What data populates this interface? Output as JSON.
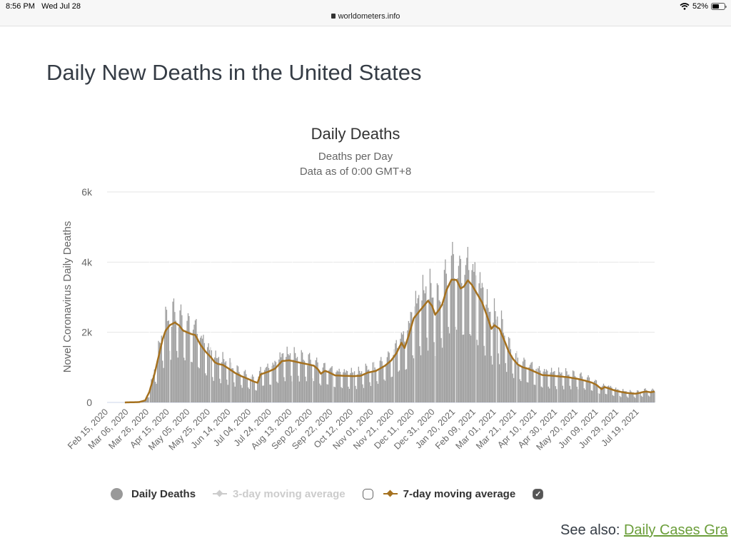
{
  "statusbar": {
    "time": "8:56 PM",
    "date": "Wed Jul 28",
    "url": "worldometers.info",
    "battery": "52%"
  },
  "page": {
    "title": "Daily New Deaths in the United States"
  },
  "see_also": {
    "label": "See also:",
    "link": "Daily Cases Gra"
  },
  "colors": {
    "bars": "#9e9e9e",
    "ma7": "#a5711f",
    "ma3_disabled": "#cccccc",
    "link": "#6b9e3a"
  },
  "chart_data": {
    "type": "bar",
    "title": "Daily Deaths",
    "subtitle": "Deaths per Day",
    "subtitle2": "Data as of 0:00 GMT+8",
    "xlabel": "",
    "ylabel": "Novel Coronavirus Daily Deaths",
    "ylim": [
      0,
      6000
    ],
    "yticks": [
      0,
      2000,
      4000,
      6000
    ],
    "ytick_labels": [
      "0",
      "2k",
      "4k",
      "6k"
    ],
    "grid": true,
    "x_start_date": "Feb 15, 2020",
    "x_days": 536,
    "x_tick_every_days": 20,
    "x_tick_labels": [
      "Feb 15, 2020",
      "Mar 06, 2020",
      "Mar 26, 2020",
      "Apr 15, 2020",
      "May 05, 2020",
      "May 25, 2020",
      "Jun 14, 2020",
      "Jul 04, 2020",
      "Jul 24, 2020",
      "Aug 13, 2020",
      "Sep 02, 2020",
      "Sep 22, 2020",
      "Oct 12, 2020",
      "Nov 01, 2020",
      "Nov 21, 2020",
      "Dec 11, 2020",
      "Dec 31, 2020",
      "Jan 20, 2021",
      "Feb 09, 2021",
      "Mar 01, 2021",
      "Mar 21, 2021",
      "Apr 10, 2021",
      "Apr 30, 2021",
      "May 20, 2021",
      "Jun 09, 2021",
      "Jun 29, 2021",
      "Jul 19, 2021"
    ],
    "weekly_pattern": [
      0.62,
      0.55,
      1.05,
      1.25,
      1.22,
      1.18,
      1.1
    ],
    "series": [
      {
        "name": "Daily Deaths",
        "kind": "bar",
        "derived_from": "7-day moving average x weekly_pattern",
        "visible": true
      },
      {
        "name": "3-day moving average",
        "kind": "line",
        "visible": false
      },
      {
        "name": "7-day moving average",
        "kind": "line",
        "visible": true,
        "points": [
          [
            16,
            0
          ],
          [
            30,
            10
          ],
          [
            36,
            60
          ],
          [
            40,
            300
          ],
          [
            45,
            800
          ],
          [
            49,
            1300
          ],
          [
            53,
            1800
          ],
          [
            56,
            2050
          ],
          [
            60,
            2200
          ],
          [
            65,
            2280
          ],
          [
            69,
            2200
          ],
          [
            73,
            2050
          ],
          [
            77,
            2000
          ],
          [
            81,
            1950
          ],
          [
            85,
            1920
          ],
          [
            90,
            1650
          ],
          [
            95,
            1450
          ],
          [
            100,
            1300
          ],
          [
            104,
            1150
          ],
          [
            107,
            1100
          ],
          [
            112,
            1070
          ],
          [
            118,
            960
          ],
          [
            124,
            840
          ],
          [
            130,
            750
          ],
          [
            136,
            680
          ],
          [
            142,
            600
          ],
          [
            146,
            560
          ],
          [
            149,
            800
          ],
          [
            156,
            870
          ],
          [
            163,
            960
          ],
          [
            170,
            1180
          ],
          [
            177,
            1200
          ],
          [
            185,
            1150
          ],
          [
            193,
            1100
          ],
          [
            201,
            1050
          ],
          [
            205,
            950
          ],
          [
            208,
            820
          ],
          [
            212,
            900
          ],
          [
            215,
            870
          ],
          [
            222,
            770
          ],
          [
            230,
            760
          ],
          [
            240,
            750
          ],
          [
            247,
            760
          ],
          [
            254,
            850
          ],
          [
            262,
            900
          ],
          [
            271,
            1050
          ],
          [
            277,
            1200
          ],
          [
            282,
            1400
          ],
          [
            287,
            1700
          ],
          [
            290,
            1550
          ],
          [
            294,
            1900
          ],
          [
            299,
            2400
          ],
          [
            306,
            2650
          ],
          [
            313,
            2900
          ],
          [
            317,
            2750
          ],
          [
            320,
            2500
          ],
          [
            324,
            2650
          ],
          [
            327,
            2800
          ],
          [
            331,
            3200
          ],
          [
            336,
            3500
          ],
          [
            341,
            3490
          ],
          [
            345,
            3250
          ],
          [
            348,
            3300
          ],
          [
            352,
            3480
          ],
          [
            356,
            3350
          ],
          [
            359,
            3200
          ],
          [
            366,
            2850
          ],
          [
            371,
            2450
          ],
          [
            375,
            2100
          ],
          [
            378,
            2200
          ],
          [
            383,
            2100
          ],
          [
            388,
            1750
          ],
          [
            392,
            1450
          ],
          [
            396,
            1250
          ],
          [
            401,
            1080
          ],
          [
            406,
            1000
          ],
          [
            411,
            960
          ],
          [
            418,
            870
          ],
          [
            425,
            780
          ],
          [
            435,
            760
          ],
          [
            450,
            720
          ],
          [
            460,
            670
          ],
          [
            467,
            620
          ],
          [
            474,
            560
          ],
          [
            478,
            500
          ],
          [
            483,
            380
          ],
          [
            486,
            440
          ],
          [
            490,
            400
          ],
          [
            496,
            340
          ],
          [
            502,
            300
          ],
          [
            508,
            270
          ],
          [
            516,
            250
          ],
          [
            520,
            270
          ],
          [
            524,
            300
          ],
          [
            527,
            310
          ],
          [
            531,
            290
          ],
          [
            535,
            310
          ]
        ]
      }
    ],
    "legend": {
      "position": "bottom",
      "items": [
        "Daily Deaths",
        "3-day moving average",
        "7-day moving average"
      ]
    }
  }
}
